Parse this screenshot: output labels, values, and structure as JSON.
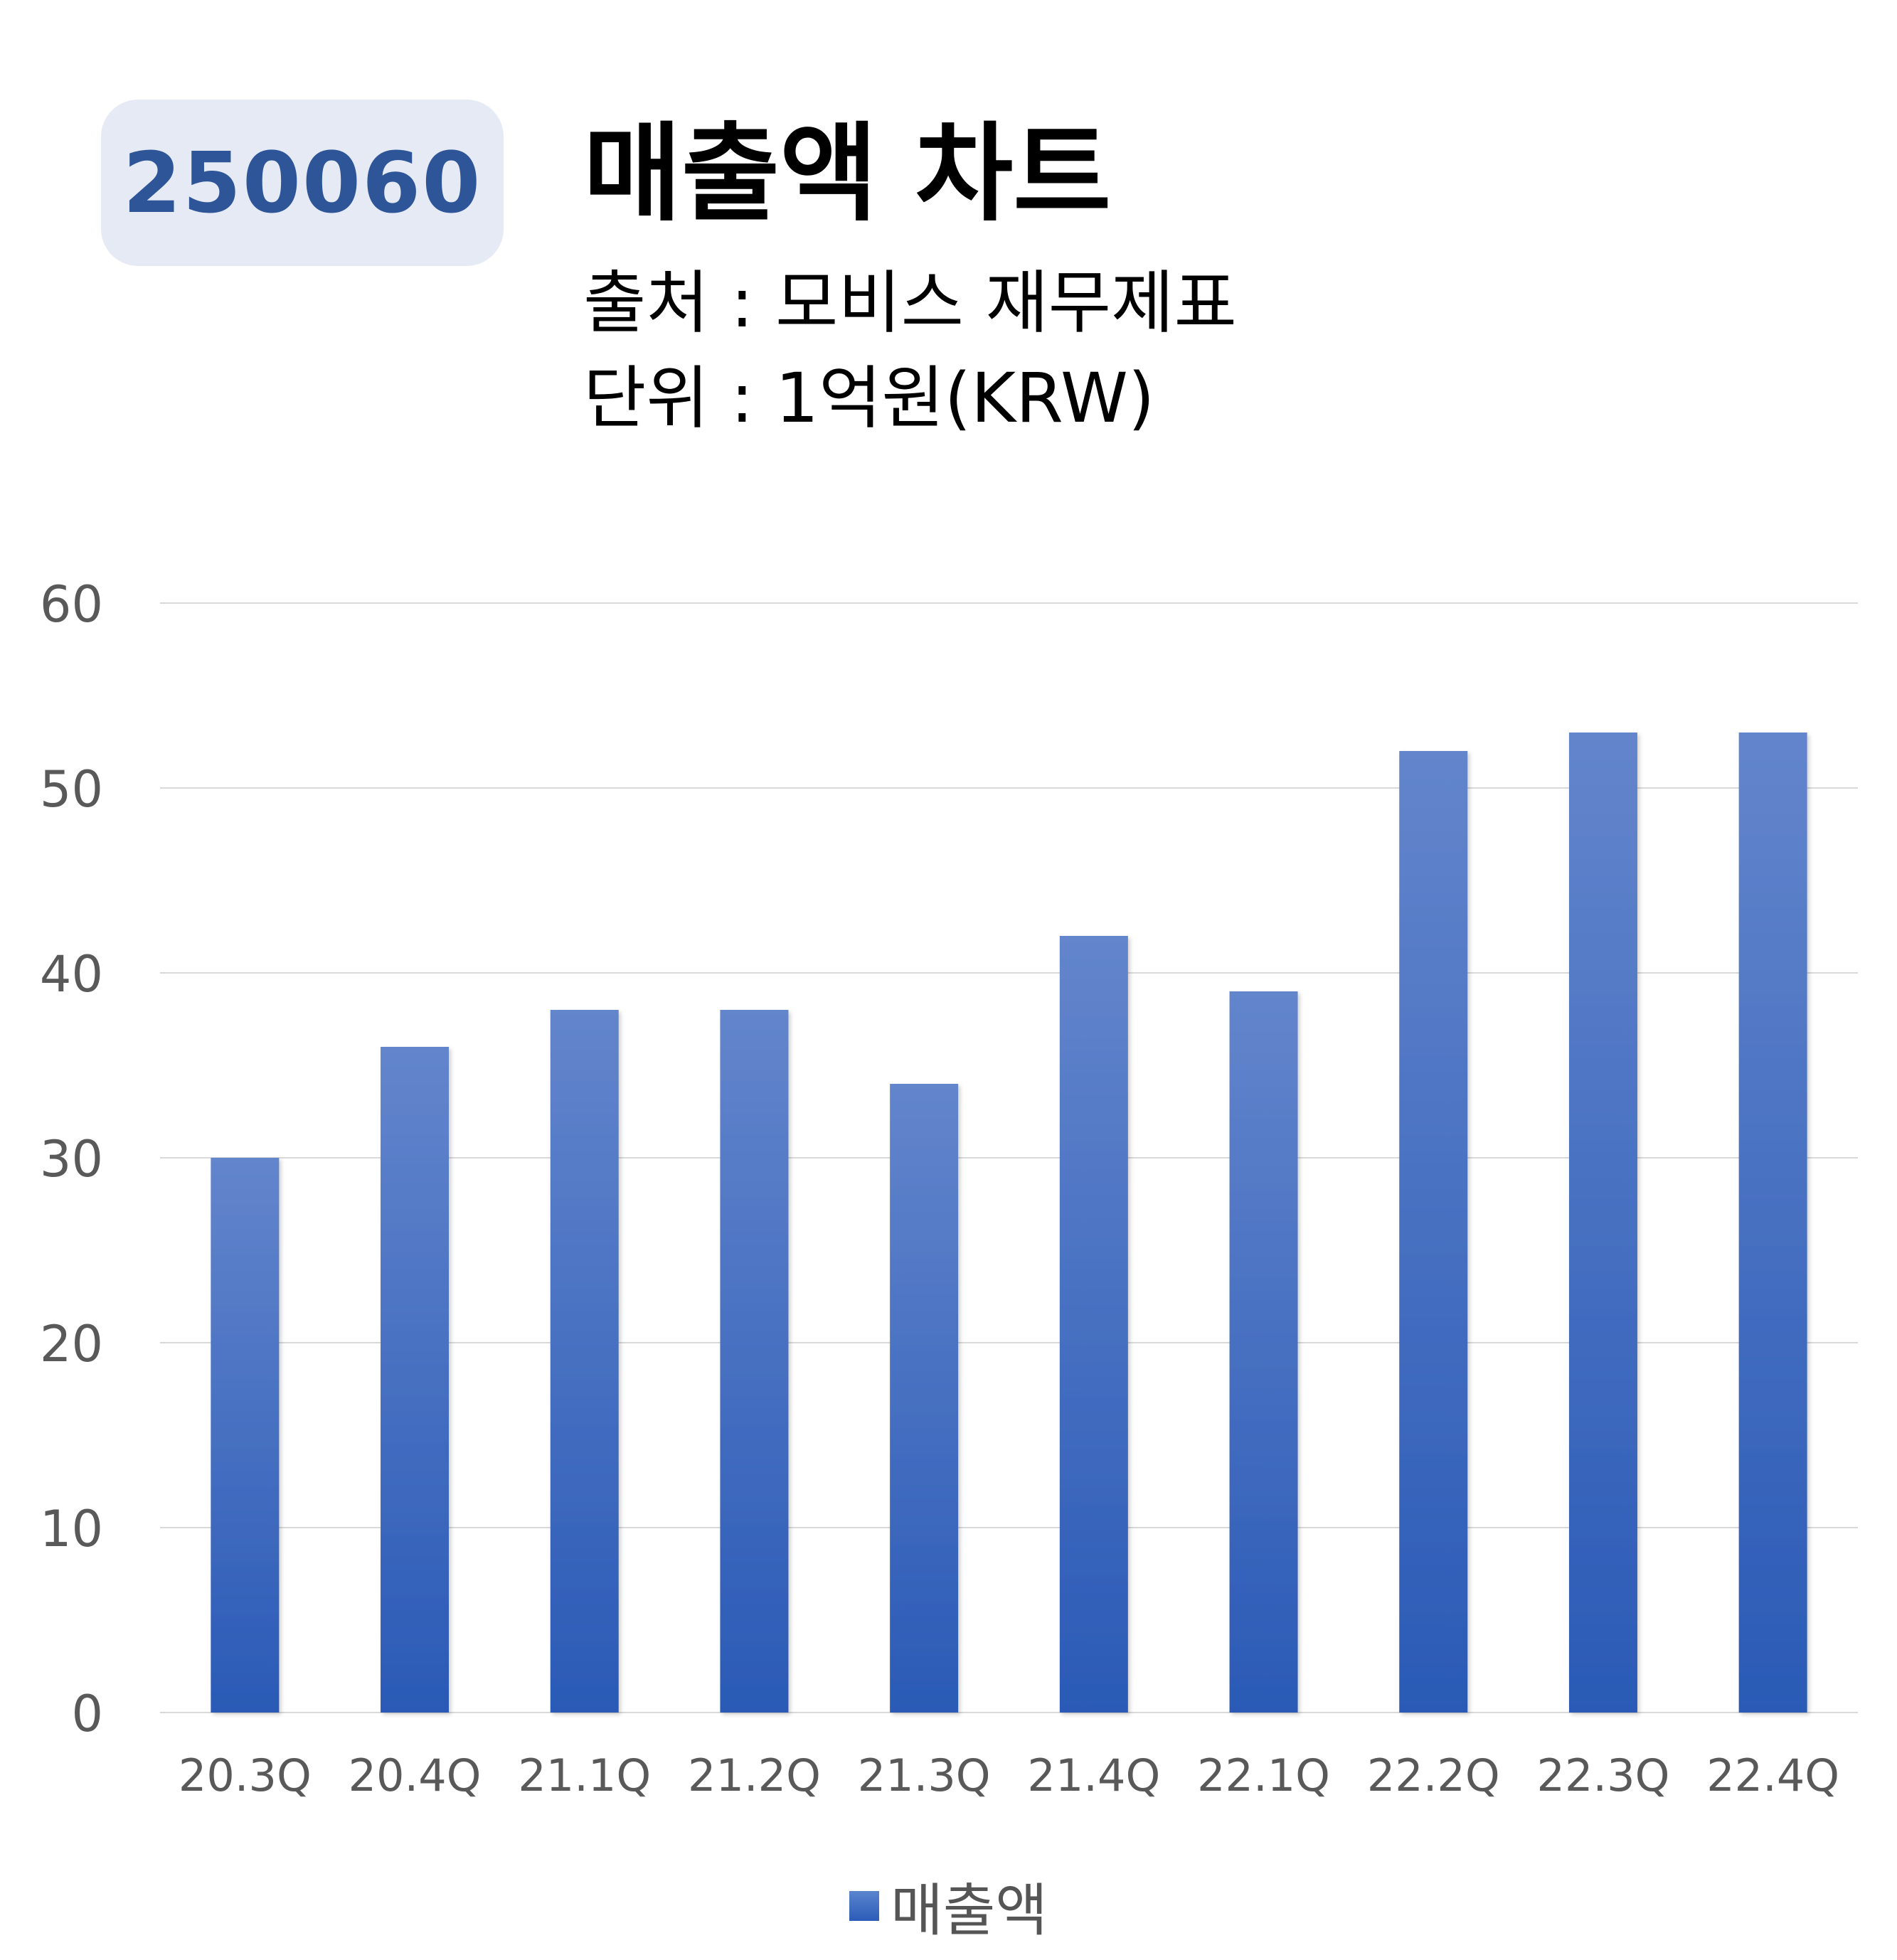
{
  "header": {
    "code": "250060",
    "title": "매출액 차트",
    "source": "출처 : 모비스 재무제표",
    "unit": "단위 : 1억원(KRW)"
  },
  "colors": {
    "bar_top": "#6385cc",
    "bar_bottom": "#2a5ab6",
    "badge_bg": "#e5eaf5",
    "badge_text": "#2e5598",
    "grid": "#d9d9d9",
    "tick_text": "#595959"
  },
  "chart_data": {
    "type": "bar",
    "categories": [
      "20.3Q",
      "20.4Q",
      "21.1Q",
      "21.2Q",
      "21.3Q",
      "21.4Q",
      "22.1Q",
      "22.2Q",
      "22.3Q",
      "22.4Q"
    ],
    "series": [
      {
        "name": "매출액",
        "values": [
          30,
          36,
          38,
          38,
          34,
          42,
          39,
          52,
          53,
          53
        ]
      }
    ],
    "ylim": [
      0,
      60
    ],
    "yticks": [
      0,
      10,
      20,
      30,
      40,
      50,
      60
    ],
    "grid": true,
    "legend": "bottom"
  }
}
